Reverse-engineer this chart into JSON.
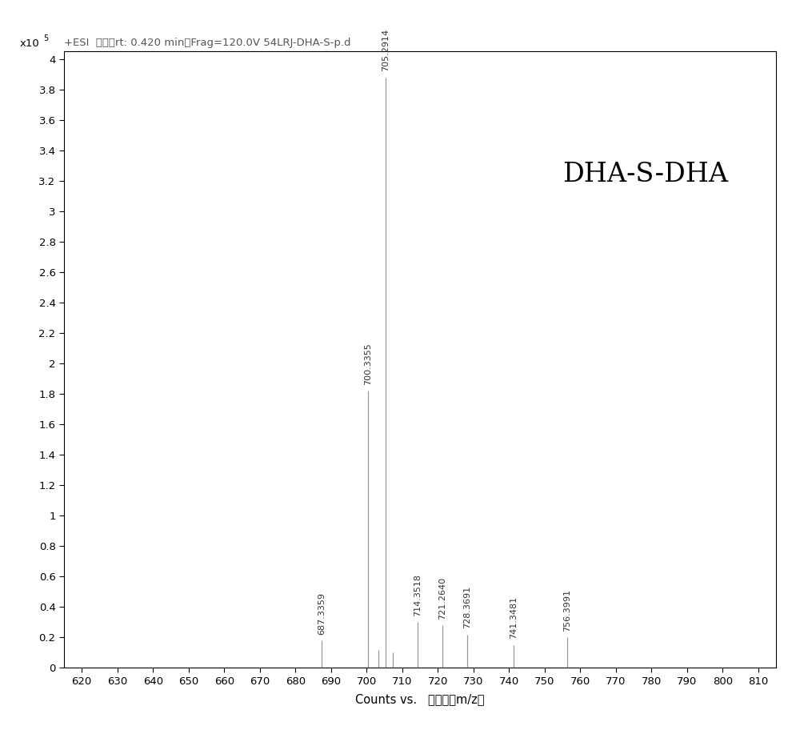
{
  "title_text": "+ESI  扫描（rt: 0.420 min）Frag=120.0V 54LRJ-DHA-S-p.d",
  "annotation_text": "DHA-S-DHA",
  "xlabel_part1": "Counts vs.   ",
  "xlabel_part2": "质荷比（m/z）",
  "ylabel_text": "x10",
  "ylabel_exp": "5",
  "xlim": [
    615,
    815
  ],
  "ylim": [
    0,
    4.05
  ],
  "xticks": [
    620,
    630,
    640,
    650,
    660,
    670,
    680,
    690,
    700,
    710,
    720,
    730,
    740,
    750,
    760,
    770,
    780,
    790,
    800,
    810
  ],
  "yticks": [
    0,
    0.2,
    0.4,
    0.6,
    0.8,
    1.0,
    1.2,
    1.4,
    1.6,
    1.8,
    2.0,
    2.2,
    2.4,
    2.6,
    2.8,
    3.0,
    3.2,
    3.4,
    3.6,
    3.8,
    4.0
  ],
  "peaks": [
    {
      "mz": 687.3359,
      "intensity": 0.18,
      "label": "687.3359"
    },
    {
      "mz": 700.3355,
      "intensity": 1.82,
      "label": "700.3355"
    },
    {
      "mz": 703.3,
      "intensity": 0.12,
      "label": null
    },
    {
      "mz": 705.2914,
      "intensity": 3.88,
      "label": "705.2914"
    },
    {
      "mz": 707.3,
      "intensity": 0.1,
      "label": null
    },
    {
      "mz": 714.3518,
      "intensity": 0.3,
      "label": "714.3518"
    },
    {
      "mz": 721.264,
      "intensity": 0.28,
      "label": "721.2640"
    },
    {
      "mz": 728.3691,
      "intensity": 0.22,
      "label": "728.3691"
    },
    {
      "mz": 741.3481,
      "intensity": 0.15,
      "label": "741.3481"
    },
    {
      "mz": 756.3991,
      "intensity": 0.2,
      "label": "756.3991"
    }
  ],
  "line_color": "#999999",
  "label_color": "#333333",
  "background_color": "#ffffff",
  "title_fontsize": 9.5,
  "label_fontsize": 8,
  "annotation_fontsize": 24,
  "axis_fontsize": 9.5
}
